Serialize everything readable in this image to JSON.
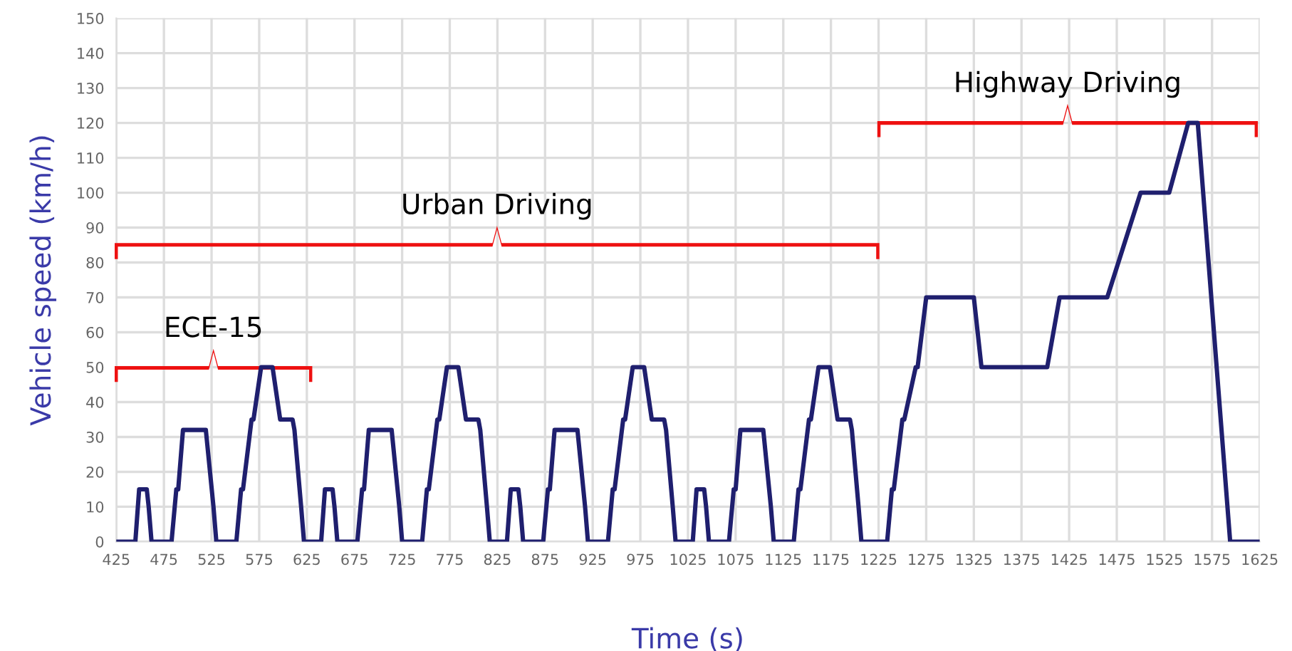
{
  "chart_data": {
    "type": "line",
    "xlabel": "Time (s)",
    "ylabel": "Vehicle speed (km/h)",
    "x": [
      425,
      445,
      449,
      457,
      459,
      462,
      483,
      488,
      490,
      495,
      519,
      527,
      530,
      551,
      556,
      558,
      567,
      569,
      577,
      589,
      597,
      610,
      612,
      619,
      622,
      629,
      640,
      644,
      652,
      654,
      657,
      678,
      683,
      685,
      690,
      714,
      722,
      725,
      746,
      751,
      753,
      762,
      764,
      772,
      784,
      792,
      805,
      807,
      814,
      817,
      824,
      835,
      839,
      847,
      849,
      852,
      873,
      878,
      880,
      885,
      909,
      917,
      920,
      941,
      946,
      948,
      957,
      959,
      967,
      979,
      987,
      1000,
      1002,
      1009,
      1012,
      1019,
      1030,
      1034,
      1042,
      1044,
      1047,
      1068,
      1073,
      1075,
      1080,
      1104,
      1112,
      1115,
      1136,
      1141,
      1143,
      1152,
      1154,
      1162,
      1174,
      1182,
      1195,
      1197,
      1204,
      1207,
      1214,
      1234,
      1239,
      1241,
      1250,
      1252,
      1264,
      1266,
      1275,
      1325,
      1333,
      1402,
      1415,
      1465,
      1500,
      1530,
      1550,
      1560,
      1594,
      1625
    ],
    "series": [
      {
        "color": "#1f1f6e",
        "values": [
          0,
          0,
          15,
          15,
          10,
          0,
          0,
          15,
          15,
          32,
          32,
          10,
          0,
          0,
          15,
          15,
          35,
          35,
          50,
          50,
          35,
          35,
          32,
          10,
          0,
          0,
          0,
          15,
          15,
          10,
          0,
          0,
          15,
          15,
          32,
          32,
          10,
          0,
          0,
          15,
          15,
          35,
          35,
          50,
          50,
          35,
          35,
          32,
          10,
          0,
          0,
          0,
          15,
          15,
          10,
          0,
          0,
          15,
          15,
          32,
          32,
          10,
          0,
          0,
          15,
          15,
          35,
          35,
          50,
          50,
          35,
          35,
          32,
          10,
          0,
          0,
          0,
          15,
          15,
          10,
          0,
          0,
          15,
          15,
          32,
          32,
          10,
          0,
          0,
          15,
          15,
          35,
          35,
          50,
          50,
          35,
          35,
          32,
          10,
          0,
          0,
          0,
          15,
          15,
          35,
          35,
          50,
          50,
          70,
          70,
          50,
          50,
          70,
          70,
          100,
          100,
          120,
          120,
          0,
          0
        ]
      }
    ],
    "xlim": [
      425,
      1625
    ],
    "ylim": [
      0,
      150
    ],
    "xticks": [
      425,
      475,
      525,
      575,
      625,
      675,
      725,
      775,
      825,
      875,
      925,
      975,
      1025,
      1075,
      1125,
      1175,
      1225,
      1275,
      1325,
      1375,
      1425,
      1475,
      1525,
      1575,
      1625
    ],
    "yticks": [
      0,
      10,
      20,
      30,
      40,
      50,
      60,
      70,
      80,
      90,
      100,
      110,
      120,
      130,
      140,
      150
    ],
    "grid": true,
    "marker": "none",
    "line_style": "solid",
    "annotations": [
      "ECE-15",
      "Urban Driving",
      "Highway Driving"
    ]
  }
}
